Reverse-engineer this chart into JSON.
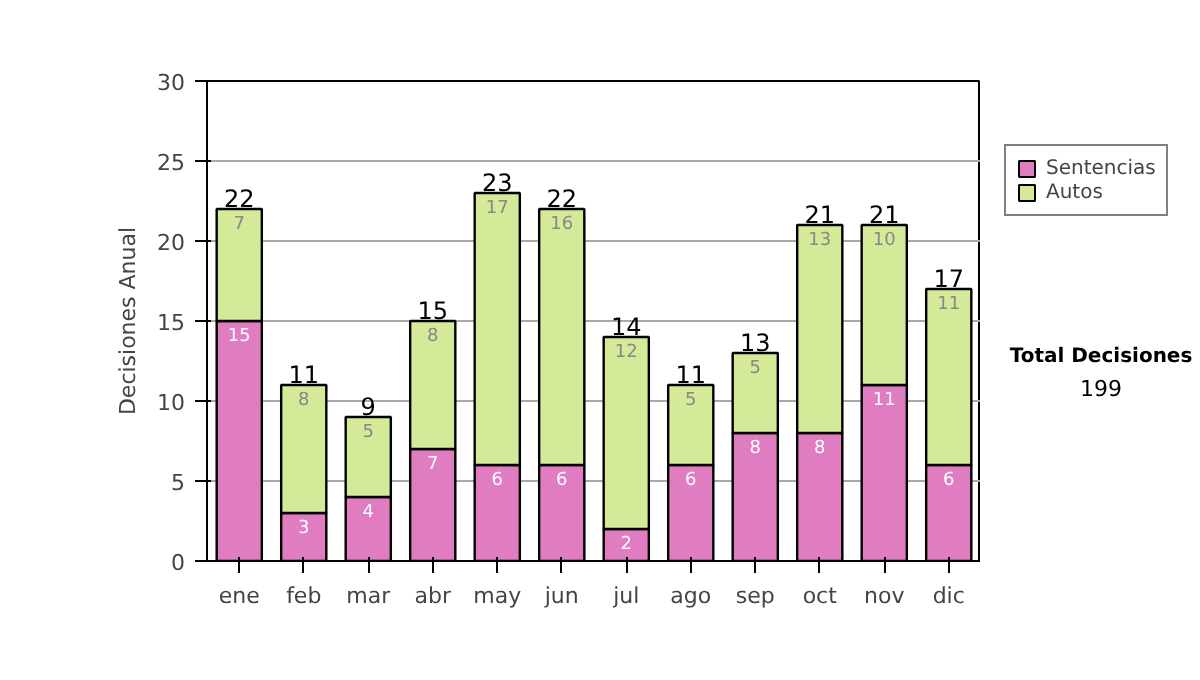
{
  "chart_data": {
    "type": "bar",
    "stacked": true,
    "ylabel": "Decisiones Anual",
    "categories": [
      "ene",
      "feb",
      "mar",
      "abr",
      "may",
      "jun",
      "jul",
      "ago",
      "sep",
      "oct",
      "nov",
      "dic"
    ],
    "series": [
      {
        "name": "Sentencias",
        "color": "#e07cc0",
        "values": [
          15,
          3,
          4,
          7,
          6,
          6,
          2,
          6,
          8,
          8,
          11,
          6
        ]
      },
      {
        "name": "Autos",
        "color": "#d4ea98",
        "values": [
          7,
          8,
          5,
          8,
          17,
          16,
          12,
          5,
          5,
          13,
          10,
          11
        ]
      }
    ],
    "totals": [
      "22",
      "11",
      "9",
      "15",
      "23",
      "22",
      "14",
      "11",
      "13",
      "21",
      "21",
      "17"
    ],
    "data_labels": true,
    "ylim": [
      0,
      30
    ],
    "yticks": [
      0,
      5,
      10,
      15,
      20,
      25,
      30
    ],
    "grid": "y",
    "legend": "right",
    "annotations": [
      "Total Decisiones",
      "199"
    ]
  }
}
